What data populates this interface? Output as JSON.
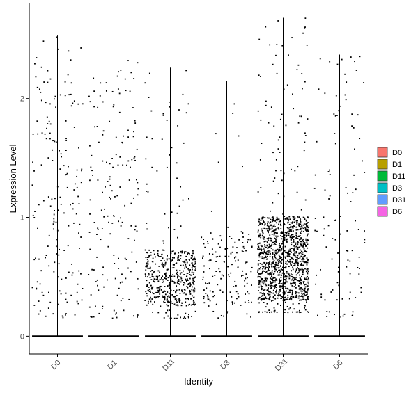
{
  "chart_data": {
    "type": "scatter",
    "subtype": "violin-jitter",
    "title": "",
    "xlabel": "Identity",
    "ylabel": "Expression Level",
    "categories": [
      "D0",
      "D1",
      "D11",
      "D3",
      "D31",
      "D6"
    ],
    "y_ticks": [
      0,
      1,
      2
    ],
    "y_tick_labels": [
      "0",
      "1",
      "2"
    ],
    "ylim": [
      -0.15,
      2.8
    ],
    "grid": false,
    "legend": {
      "position": "right",
      "entries": [
        {
          "label": "D0",
          "color": "#F8766D"
        },
        {
          "label": "D1",
          "color": "#B79F00"
        },
        {
          "label": "D11",
          "color": "#00BA38"
        },
        {
          "label": "D3",
          "color": "#00BFC4"
        },
        {
          "label": "D31",
          "color": "#619CFF"
        },
        {
          "label": "D6",
          "color": "#F564E3"
        }
      ]
    },
    "series": [
      {
        "category": "D0",
        "max": 2.53,
        "nonzero_points": 180,
        "nonzero_mean": 0.9,
        "nonzero_min": 0.15
      },
      {
        "category": "D1",
        "max": 2.33,
        "nonzero_points": 170,
        "nonzero_mean": 0.85,
        "nonzero_min": 0.15
      },
      {
        "category": "D11",
        "max": 2.26,
        "nonzero_points": 520,
        "nonzero_mean": 0.45,
        "nonzero_min": 0.15
      },
      {
        "category": "D3",
        "max": 2.15,
        "nonzero_points": 160,
        "nonzero_mean": 0.55,
        "nonzero_min": 0.15
      },
      {
        "category": "D31",
        "max": 2.68,
        "nonzero_points": 1250,
        "nonzero_mean": 0.65,
        "nonzero_min": 0.2
      },
      {
        "category": "D6",
        "max": 2.37,
        "nonzero_points": 110,
        "nonzero_mean": 0.7,
        "nonzero_min": 0.15
      }
    ],
    "colors": {
      "points": "#000000",
      "axis": "#000000",
      "tick_text": "#4d4d4d"
    }
  }
}
